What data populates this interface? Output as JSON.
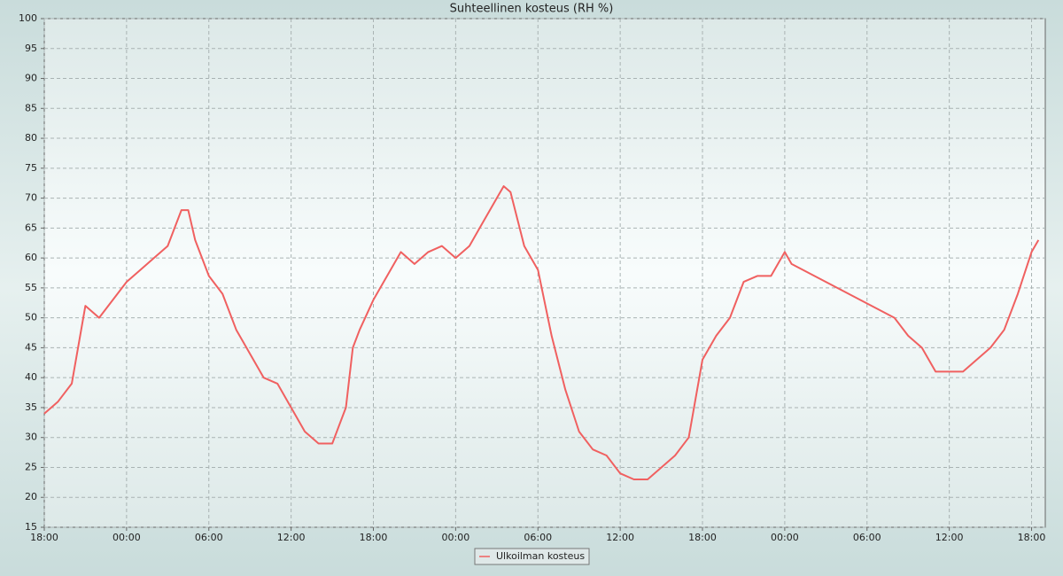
{
  "chart_data": {
    "type": "line",
    "title": "Suhteellinen kosteus (RH %)",
    "x": [
      0,
      1,
      2,
      3,
      4,
      5,
      6,
      7,
      8,
      9,
      10,
      10.5,
      11,
      12,
      13,
      14,
      15,
      16,
      17,
      18,
      19,
      20,
      21,
      22,
      22.5,
      23,
      24,
      25,
      26,
      27,
      28,
      29,
      30,
      31,
      32,
      33,
      33.5,
      34,
      35,
      36,
      37,
      38,
      39,
      40,
      41,
      42,
      43,
      44,
      45,
      46,
      47,
      48,
      49,
      50,
      51,
      52,
      53,
      54,
      54.5,
      62,
      63,
      64,
      65,
      66,
      67,
      68,
      69,
      70,
      71,
      72,
      72.5
    ],
    "series": [
      {
        "name": "Ulkoilman kosteus",
        "color": "#f06060",
        "values": [
          34,
          36,
          39,
          52,
          50,
          53,
          56,
          58,
          60,
          62,
          68,
          68,
          63,
          57,
          54,
          48,
          44,
          40,
          39,
          35,
          31,
          29,
          29,
          35,
          45,
          48,
          53,
          57,
          61,
          59,
          61,
          62,
          60,
          62,
          66,
          70,
          72,
          71,
          62,
          58,
          47,
          38,
          31,
          28,
          27,
          24,
          23,
          23,
          25,
          27,
          30,
          43,
          47,
          50,
          56,
          57,
          57,
          61,
          59,
          50,
          47,
          45,
          41,
          41,
          41,
          43,
          45,
          48,
          54,
          61,
          63
        ]
      }
    ],
    "xlim": [
      0,
      73
    ],
    "xticks": [
      {
        "value": 0,
        "label": "18:00"
      },
      {
        "value": 6,
        "label": "00:00"
      },
      {
        "value": 12,
        "label": "06:00"
      },
      {
        "value": 18,
        "label": "12:00"
      },
      {
        "value": 24,
        "label": "18:00"
      },
      {
        "value": 30,
        "label": "00:00"
      },
      {
        "value": 36,
        "label": "06:00"
      },
      {
        "value": 42,
        "label": "12:00"
      },
      {
        "value": 48,
        "label": "18:00"
      },
      {
        "value": 54,
        "label": "00:00"
      },
      {
        "value": 60,
        "label": "06:00"
      },
      {
        "value": 66,
        "label": "12:00"
      },
      {
        "value": 72,
        "label": "18:00"
      }
    ],
    "ylim": [
      15,
      100
    ],
    "yticks": [
      15,
      20,
      25,
      30,
      35,
      40,
      45,
      50,
      55,
      60,
      65,
      70,
      75,
      80,
      85,
      90,
      95,
      100
    ],
    "grid": true
  }
}
